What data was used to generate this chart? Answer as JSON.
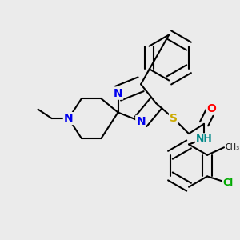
{
  "background_color": "#ebebeb",
  "atom_colors": {
    "N": "#0000EE",
    "O": "#FF0000",
    "S": "#CCAA00",
    "Cl": "#00AA00",
    "H": "#008888",
    "C": "#000000"
  },
  "bond_color": "#000000",
  "line_width": 1.5,
  "font_size": 10,
  "fig_size": [
    3.0,
    3.0
  ],
  "dpi": 100
}
